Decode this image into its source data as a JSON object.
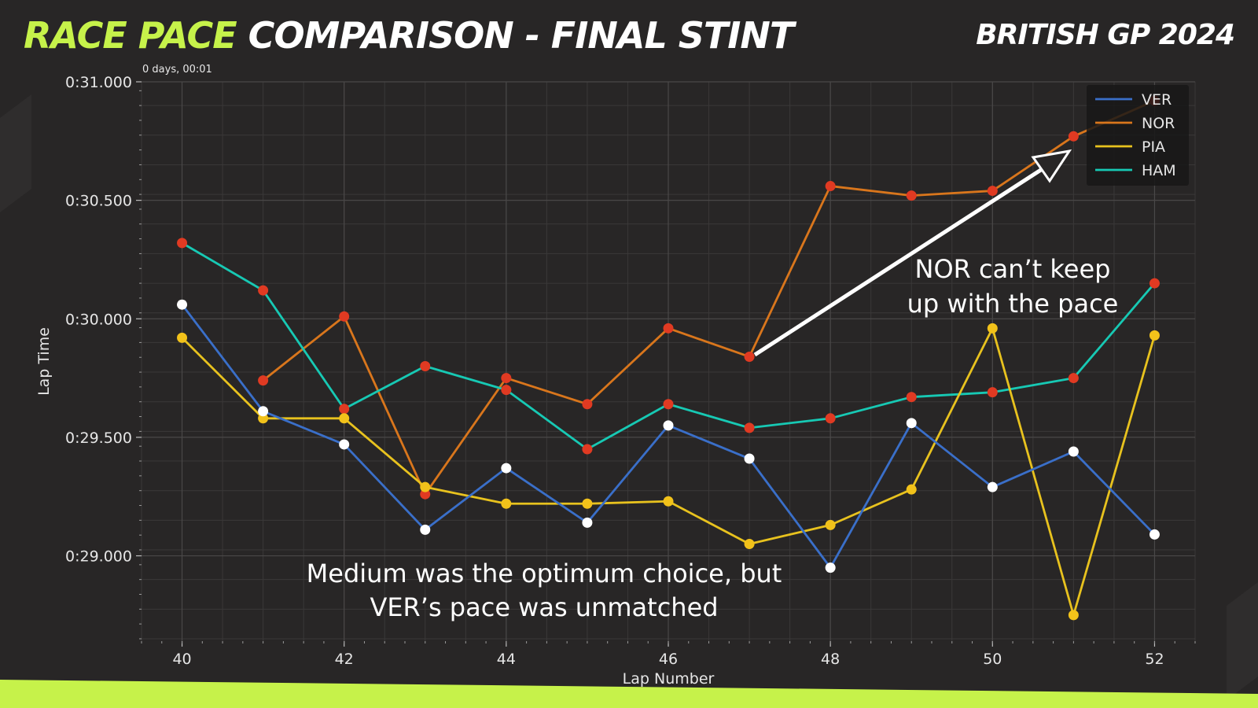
{
  "header": {
    "title_accent": "RACE PACE",
    "title_rest": " COMPARISON - FINAL STINT",
    "event": "BRITISH GP 2024"
  },
  "axis_offset_label": "0 days, 00:01",
  "annotations": {
    "nor_line1": "NOR can’t keep",
    "nor_line2": "up with the pace",
    "bottom_line1": "Medium was the optimum choice, but",
    "bottom_line2": "VER’s pace was unmatched"
  },
  "colors": {
    "background": "#282626",
    "accent": "#c6f24a",
    "VER": "#3a6fc9",
    "NOR": "#d9761c",
    "PIA": "#e8c21e",
    "HAM": "#17c9b4",
    "marker_red": "#e03a22",
    "marker_white": "#ffffff",
    "marker_yellow": "#f2c21a"
  },
  "chart_data": {
    "type": "line",
    "title": "",
    "xlabel": "Lap Number",
    "ylabel": "Lap Time",
    "xlim": [
      39.5,
      52.5
    ],
    "ylim": [
      28.64,
      31.0
    ],
    "x_ticks": [
      40,
      42,
      44,
      46,
      48,
      50,
      52
    ],
    "y_ticks": [
      {
        "value": 29.0,
        "label": "0:29.000"
      },
      {
        "value": 29.5,
        "label": "0:29.500"
      },
      {
        "value": 30.0,
        "label": "0:30.000"
      },
      {
        "value": 30.5,
        "label": "0:30.500"
      },
      {
        "value": 31.0,
        "label": "0:31.000"
      }
    ],
    "grid": true,
    "legend_position": "top-right",
    "x": [
      40,
      41,
      42,
      43,
      44,
      45,
      46,
      47,
      48,
      49,
      50,
      51,
      52
    ],
    "series": [
      {
        "name": "VER",
        "marker": "white",
        "values": [
          30.06,
          29.61,
          29.47,
          29.11,
          29.37,
          29.14,
          29.55,
          29.41,
          28.95,
          29.56,
          29.29,
          29.44,
          29.09
        ]
      },
      {
        "name": "NOR",
        "marker": "red",
        "values": [
          null,
          29.74,
          30.01,
          29.26,
          29.75,
          29.64,
          29.96,
          29.84,
          30.56,
          30.52,
          30.54,
          30.77,
          30.92
        ]
      },
      {
        "name": "PIA",
        "marker": "yellow",
        "values": [
          29.92,
          29.58,
          29.58,
          29.29,
          29.22,
          29.22,
          29.23,
          29.05,
          29.13,
          29.28,
          29.96,
          28.75,
          29.93
        ]
      },
      {
        "name": "HAM",
        "marker": "red",
        "values": [
          30.32,
          30.12,
          29.62,
          29.8,
          29.7,
          29.45,
          29.64,
          29.54,
          29.58,
          29.67,
          29.69,
          29.75,
          30.15
        ]
      }
    ]
  }
}
